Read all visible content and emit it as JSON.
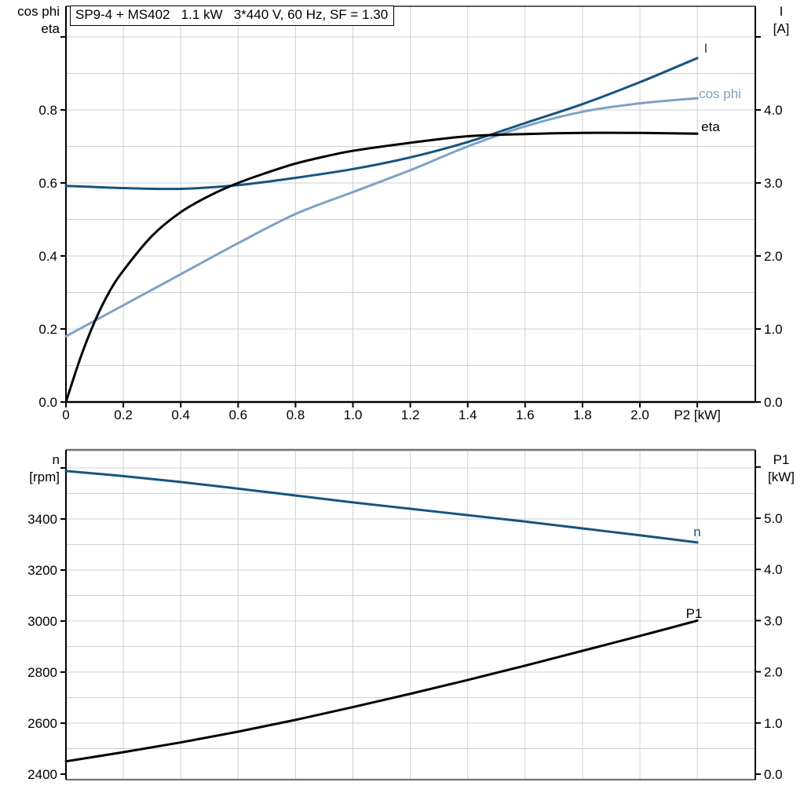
{
  "colors": {
    "dark_blue": "#175480",
    "light_blue": "#7fa2c3",
    "black": "#000000",
    "grid": "#cdd1d5",
    "frame_gray": "#6e7377",
    "axis": "#000000"
  },
  "chart_data": [
    {
      "type": "line",
      "title": "SP9-4 + MS402   1.1 kW   3*440 V, 60 Hz, SF = 1.30",
      "xlabel": "P2 [kW]",
      "grid": {
        "y_step_left_units": 0.1,
        "x_step": 0.2,
        "grid_on": true
      },
      "x_axis": {
        "lim": [
          0,
          2.4
        ],
        "ticks": [
          {
            "value": 0,
            "label": "0"
          },
          {
            "value": 0.2,
            "label": "0.2"
          },
          {
            "value": 0.4,
            "label": "0.4"
          },
          {
            "value": 0.6,
            "label": "0.6"
          },
          {
            "value": 0.8,
            "label": "0.8"
          },
          {
            "value": 1.0,
            "label": "1.0"
          },
          {
            "value": 1.2,
            "label": "1.2"
          },
          {
            "value": 1.4,
            "label": "1.4"
          },
          {
            "value": 1.6,
            "label": "1.6"
          },
          {
            "value": 1.8,
            "label": "1.8"
          },
          {
            "value": 2.0,
            "label": "2.0"
          },
          {
            "value": 2.2,
            "label": ""
          }
        ]
      },
      "left_axis": {
        "name_lines": [
          "cos phi",
          "eta"
        ],
        "lim": [
          0,
          1.08
        ],
        "ticks": [
          {
            "value": 0.0,
            "label": "0.0"
          },
          {
            "value": 0.2,
            "label": "0.2"
          },
          {
            "value": 0.4,
            "label": "0.4"
          },
          {
            "value": 0.6,
            "label": "0.6"
          },
          {
            "value": 0.8,
            "label": "0.8"
          },
          {
            "value": 1.0,
            "label": ""
          }
        ]
      },
      "right_axis": {
        "name_lines": [
          "I",
          "[A]"
        ],
        "lim": [
          0,
          5.4
        ],
        "ticks": [
          {
            "value": 0.0,
            "label": "0.0"
          },
          {
            "value": 1.0,
            "label": "1.0"
          },
          {
            "value": 2.0,
            "label": "2.0"
          },
          {
            "value": 3.0,
            "label": "3.0"
          },
          {
            "value": 4.0,
            "label": "4.0"
          },
          {
            "value": 5.0,
            "label": ""
          }
        ]
      },
      "series": [
        {
          "name": "I",
          "axis": "right",
          "color": "dark_blue",
          "x": [
            0,
            0.2,
            0.4,
            0.6,
            0.8,
            1.0,
            1.2,
            1.4,
            1.6,
            1.8,
            2.0,
            2.2
          ],
          "values": [
            2.96,
            2.93,
            2.92,
            2.97,
            3.07,
            3.19,
            3.35,
            3.56,
            3.82,
            4.08,
            4.38,
            4.71
          ]
        },
        {
          "name": "cos phi",
          "axis": "left",
          "color": "light_blue",
          "x": [
            0,
            0.2,
            0.4,
            0.6,
            0.8,
            1.0,
            1.2,
            1.4,
            1.6,
            1.8,
            2.0,
            2.2
          ],
          "values": [
            0.18,
            0.265,
            0.35,
            0.435,
            0.515,
            0.575,
            0.635,
            0.7,
            0.755,
            0.795,
            0.818,
            0.832
          ]
        },
        {
          "name": "eta",
          "axis": "left",
          "color": "black",
          "x": [
            0,
            0.05,
            0.1,
            0.15,
            0.2,
            0.3,
            0.4,
            0.5,
            0.6,
            0.7,
            0.8,
            0.9,
            1.0,
            1.2,
            1.4,
            1.6,
            1.8,
            2.0,
            2.2
          ],
          "values": [
            0,
            0.12,
            0.22,
            0.3,
            0.36,
            0.455,
            0.52,
            0.565,
            0.6,
            0.628,
            0.653,
            0.672,
            0.688,
            0.71,
            0.728,
            0.734,
            0.737,
            0.737,
            0.735
          ]
        }
      ]
    },
    {
      "type": "line",
      "title": "",
      "xlabel": "",
      "grid": {
        "y_step_left_units": 100,
        "x_step": 0.2,
        "grid_on": true
      },
      "x_axis": {
        "lim": [
          0,
          2.4
        ],
        "ticks": []
      },
      "left_axis": {
        "name_lines": [
          "n",
          "[rpm]"
        ],
        "lim": [
          2400,
          3670
        ],
        "ticks": [
          {
            "value": 2400,
            "label": "2400"
          },
          {
            "value": 2600,
            "label": "2600"
          },
          {
            "value": 2800,
            "label": "2800"
          },
          {
            "value": 3000,
            "label": "3000"
          },
          {
            "value": 3200,
            "label": "3200"
          },
          {
            "value": 3400,
            "label": "3400"
          },
          {
            "value": 3600,
            "label": ""
          }
        ]
      },
      "right_axis": {
        "name_lines": [
          "P1",
          "[kW]"
        ],
        "lim": [
          0,
          6.3
        ],
        "ticks": [
          {
            "value": 0.0,
            "label": "0.0"
          },
          {
            "value": 1.0,
            "label": "1.0"
          },
          {
            "value": 2.0,
            "label": "2.0"
          },
          {
            "value": 3.0,
            "label": "3.0"
          },
          {
            "value": 4.0,
            "label": "4.0"
          },
          {
            "value": 5.0,
            "label": "5.0"
          },
          {
            "value": 6.0,
            "label": ""
          }
        ]
      },
      "series": [
        {
          "name": "n",
          "axis": "left",
          "color": "dark_blue",
          "x": [
            0,
            0.2,
            0.4,
            0.6,
            0.8,
            1.0,
            1.2,
            1.4,
            1.6,
            1.8,
            2.0,
            2.2
          ],
          "values": [
            3588,
            3568,
            3545,
            3519,
            3492,
            3465,
            3440,
            3415,
            3390,
            3363,
            3336,
            3308
          ]
        },
        {
          "name": "P1",
          "axis": "right",
          "color": "black",
          "x": [
            0,
            0.2,
            0.4,
            0.6,
            0.8,
            1.0,
            1.2,
            1.4,
            1.6,
            1.8,
            2.0,
            2.2
          ],
          "values": [
            0.25,
            0.43,
            0.62,
            0.83,
            1.06,
            1.31,
            1.57,
            1.84,
            2.12,
            2.41,
            2.7,
            3.0
          ]
        }
      ]
    }
  ]
}
